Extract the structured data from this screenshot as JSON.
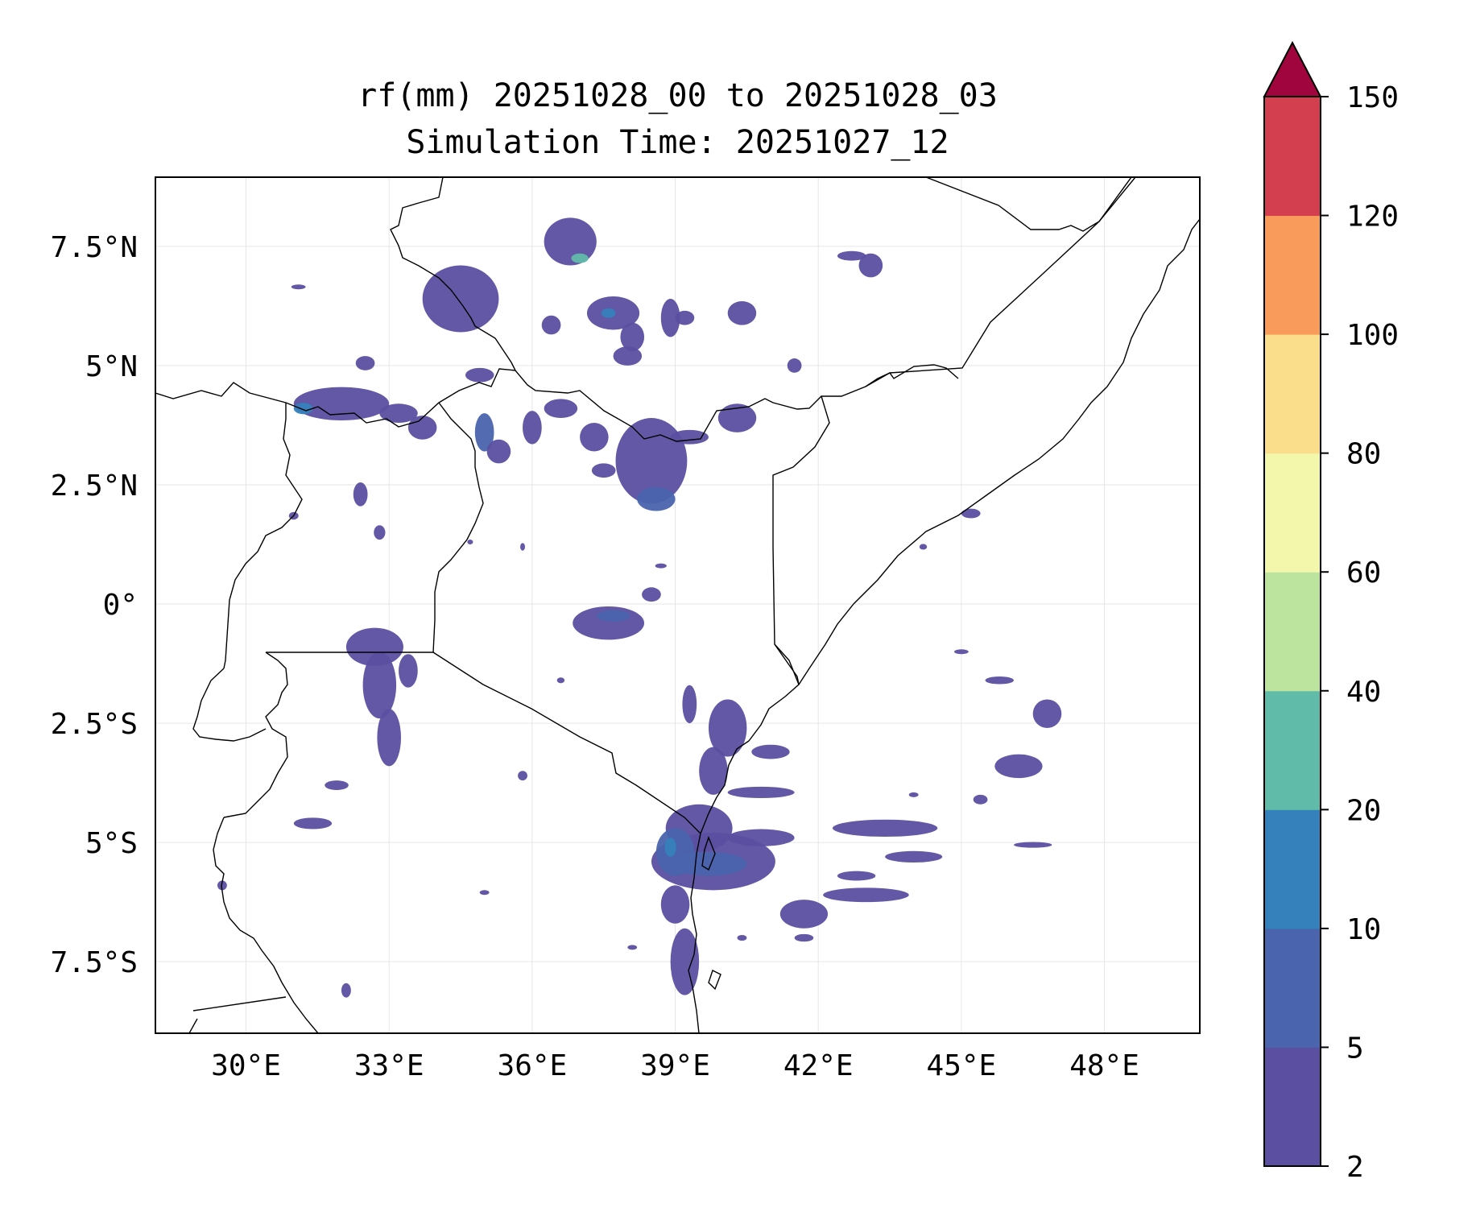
{
  "title": {
    "line1": "rf(mm) 20251028_00 to 20251028_03",
    "line2": "Simulation Time: 20251027_12"
  },
  "map": {
    "lon_range": [
      28.1,
      50.0
    ],
    "lat_range": [
      -9.0,
      8.95
    ],
    "lon_ticks": [
      {
        "value": 30,
        "label": "30°E"
      },
      {
        "value": 33,
        "label": "33°E"
      },
      {
        "value": 36,
        "label": "36°E"
      },
      {
        "value": 39,
        "label": "39°E"
      },
      {
        "value": 42,
        "label": "42°E"
      },
      {
        "value": 45,
        "label": "45°E"
      },
      {
        "value": 48,
        "label": "48°E"
      }
    ],
    "lat_ticks": [
      {
        "value": 7.5,
        "label": "7.5°N"
      },
      {
        "value": 5,
        "label": "5°N"
      },
      {
        "value": 2.5,
        "label": "2.5°N"
      },
      {
        "value": 0,
        "label": "0°"
      },
      {
        "value": -2.5,
        "label": "2.5°S"
      },
      {
        "value": -5,
        "label": "5°S"
      },
      {
        "value": -7.5,
        "label": "7.5°S"
      }
    ],
    "rain_cells": [
      {
        "lon": 34.5,
        "lat": 6.4,
        "rlon": 0.8,
        "rlat": 0.7,
        "level": 0
      },
      {
        "lon": 36.8,
        "lat": 7.6,
        "rlon": 0.55,
        "rlat": 0.5,
        "level": 0
      },
      {
        "lon": 37.0,
        "lat": 7.25,
        "rlon": 0.18,
        "rlat": 0.1,
        "level": 3
      },
      {
        "lon": 37.7,
        "lat": 6.1,
        "rlon": 0.55,
        "rlat": 0.35,
        "level": 0
      },
      {
        "lon": 37.6,
        "lat": 6.1,
        "rlon": 0.15,
        "rlat": 0.1,
        "level": 2
      },
      {
        "lon": 36.4,
        "lat": 5.85,
        "rlon": 0.2,
        "rlat": 0.2,
        "level": 0
      },
      {
        "lon": 38.0,
        "lat": 5.2,
        "rlon": 0.3,
        "rlat": 0.2,
        "level": 0
      },
      {
        "lon": 38.1,
        "lat": 5.6,
        "rlon": 0.25,
        "rlat": 0.3,
        "level": 0
      },
      {
        "lon": 38.9,
        "lat": 6.0,
        "rlon": 0.2,
        "rlat": 0.4,
        "level": 0
      },
      {
        "lon": 39.2,
        "lat": 6.0,
        "rlon": 0.2,
        "rlat": 0.15,
        "level": 0
      },
      {
        "lon": 40.4,
        "lat": 6.1,
        "rlon": 0.3,
        "rlat": 0.25,
        "level": 0
      },
      {
        "lon": 41.5,
        "lat": 5.0,
        "rlon": 0.15,
        "rlat": 0.15,
        "level": 0
      },
      {
        "lon": 43.1,
        "lat": 7.1,
        "rlon": 0.25,
        "rlat": 0.25,
        "level": 0
      },
      {
        "lon": 42.7,
        "lat": 7.3,
        "rlon": 0.3,
        "rlat": 0.1,
        "level": 0
      },
      {
        "lon": 31.1,
        "lat": 6.65,
        "rlon": 0.15,
        "rlat": 0.05,
        "level": 0
      },
      {
        "lon": 32.0,
        "lat": 4.2,
        "rlon": 1.0,
        "rlat": 0.35,
        "level": 0
      },
      {
        "lon": 31.2,
        "lat": 4.1,
        "rlon": 0.2,
        "rlat": 0.12,
        "level": 2
      },
      {
        "lon": 32.5,
        "lat": 5.05,
        "rlon": 0.2,
        "rlat": 0.15,
        "level": 0
      },
      {
        "lon": 33.2,
        "lat": 4.0,
        "rlon": 0.4,
        "rlat": 0.2,
        "level": 0
      },
      {
        "lon": 33.7,
        "lat": 3.7,
        "rlon": 0.3,
        "rlat": 0.25,
        "level": 0
      },
      {
        "lon": 34.9,
        "lat": 4.8,
        "rlon": 0.3,
        "rlat": 0.15,
        "level": 0
      },
      {
        "lon": 35.0,
        "lat": 3.6,
        "rlon": 0.2,
        "rlat": 0.4,
        "level": 1
      },
      {
        "lon": 35.3,
        "lat": 3.2,
        "rlon": 0.25,
        "rlat": 0.25,
        "level": 0
      },
      {
        "lon": 36.0,
        "lat": 3.7,
        "rlon": 0.2,
        "rlat": 0.35,
        "level": 0
      },
      {
        "lon": 36.6,
        "lat": 4.1,
        "rlon": 0.35,
        "rlat": 0.2,
        "level": 0
      },
      {
        "lon": 37.3,
        "lat": 3.5,
        "rlon": 0.3,
        "rlat": 0.3,
        "level": 0
      },
      {
        "lon": 38.5,
        "lat": 3.0,
        "rlon": 0.75,
        "rlat": 0.9,
        "level": 0
      },
      {
        "lon": 38.6,
        "lat": 2.2,
        "rlon": 0.4,
        "rlat": 0.25,
        "level": 1
      },
      {
        "lon": 39.3,
        "lat": 3.5,
        "rlon": 0.4,
        "rlat": 0.15,
        "level": 0
      },
      {
        "lon": 40.3,
        "lat": 3.9,
        "rlon": 0.4,
        "rlat": 0.3,
        "level": 0
      },
      {
        "lon": 37.5,
        "lat": 2.8,
        "rlon": 0.25,
        "rlat": 0.15,
        "level": 0
      },
      {
        "lon": 32.4,
        "lat": 2.3,
        "rlon": 0.15,
        "rlat": 0.25,
        "level": 0
      },
      {
        "lon": 32.8,
        "lat": 1.5,
        "rlon": 0.12,
        "rlat": 0.15,
        "level": 0
      },
      {
        "lon": 31.0,
        "lat": 1.85,
        "rlon": 0.1,
        "rlat": 0.08,
        "level": 0
      },
      {
        "lon": 37.6,
        "lat": -0.4,
        "rlon": 0.75,
        "rlat": 0.35,
        "level": 0
      },
      {
        "lon": 37.7,
        "lat": -0.25,
        "rlon": 0.35,
        "rlat": 0.12,
        "level": 1
      },
      {
        "lon": 38.5,
        "lat": 0.2,
        "rlon": 0.2,
        "rlat": 0.15,
        "level": 0
      },
      {
        "lon": 32.7,
        "lat": -0.9,
        "rlon": 0.6,
        "rlat": 0.4,
        "level": 0
      },
      {
        "lon": 32.8,
        "lat": -1.7,
        "rlon": 0.35,
        "rlat": 0.7,
        "level": 0
      },
      {
        "lon": 33.0,
        "lat": -2.8,
        "rlon": 0.25,
        "rlat": 0.6,
        "level": 0
      },
      {
        "lon": 33.4,
        "lat": -1.4,
        "rlon": 0.2,
        "rlat": 0.35,
        "level": 0
      },
      {
        "lon": 31.4,
        "lat": -4.6,
        "rlon": 0.4,
        "rlat": 0.12,
        "level": 0
      },
      {
        "lon": 31.9,
        "lat": -3.8,
        "rlon": 0.25,
        "rlat": 0.1,
        "level": 0
      },
      {
        "lon": 32.1,
        "lat": -8.1,
        "rlon": 0.1,
        "rlat": 0.15,
        "level": 0
      },
      {
        "lon": 29.5,
        "lat": -5.9,
        "rlon": 0.1,
        "rlat": 0.1,
        "level": 0
      },
      {
        "lon": 35.0,
        "lat": -6.05,
        "rlon": 0.1,
        "rlat": 0.05,
        "level": 0
      },
      {
        "lon": 35.8,
        "lat": -3.6,
        "rlon": 0.1,
        "rlat": 0.1,
        "level": 0
      },
      {
        "lon": 39.5,
        "lat": -4.7,
        "rlon": 0.7,
        "rlat": 0.5,
        "level": 0
      },
      {
        "lon": 39.8,
        "lat": -5.4,
        "rlon": 1.3,
        "rlat": 0.6,
        "level": 0
      },
      {
        "lon": 39.7,
        "lat": -5.45,
        "rlon": 0.8,
        "rlat": 0.25,
        "level": 1
      },
      {
        "lon": 39.0,
        "lat": -5.2,
        "rlon": 0.4,
        "rlat": 0.5,
        "level": 1
      },
      {
        "lon": 38.9,
        "lat": -5.1,
        "rlon": 0.12,
        "rlat": 0.2,
        "level": 2
      },
      {
        "lon": 40.8,
        "lat": -4.9,
        "rlon": 0.7,
        "rlat": 0.18,
        "level": 0
      },
      {
        "lon": 40.8,
        "lat": -3.95,
        "rlon": 0.7,
        "rlat": 0.12,
        "level": 0
      },
      {
        "lon": 41.0,
        "lat": -3.1,
        "rlon": 0.4,
        "rlat": 0.15,
        "level": 0
      },
      {
        "lon": 40.1,
        "lat": -2.6,
        "rlon": 0.4,
        "rlat": 0.6,
        "level": 0
      },
      {
        "lon": 39.8,
        "lat": -3.5,
        "rlon": 0.3,
        "rlat": 0.5,
        "level": 0
      },
      {
        "lon": 39.3,
        "lat": -2.1,
        "rlon": 0.15,
        "rlat": 0.4,
        "level": 0
      },
      {
        "lon": 39.2,
        "lat": -7.5,
        "rlon": 0.3,
        "rlat": 0.7,
        "level": 0
      },
      {
        "lon": 39.0,
        "lat": -6.3,
        "rlon": 0.3,
        "rlat": 0.4,
        "level": 0
      },
      {
        "lon": 43.0,
        "lat": -6.1,
        "rlon": 0.9,
        "rlat": 0.15,
        "level": 0
      },
      {
        "lon": 41.7,
        "lat": -6.5,
        "rlon": 0.5,
        "rlat": 0.3,
        "level": 0
      },
      {
        "lon": 43.4,
        "lat": -4.7,
        "rlon": 1.1,
        "rlat": 0.18,
        "level": 0
      },
      {
        "lon": 44.0,
        "lat": -5.3,
        "rlon": 0.6,
        "rlat": 0.12,
        "level": 0
      },
      {
        "lon": 42.8,
        "lat": -5.7,
        "rlon": 0.4,
        "rlat": 0.1,
        "level": 0
      },
      {
        "lon": 46.8,
        "lat": -2.3,
        "rlon": 0.3,
        "rlat": 0.3,
        "level": 0
      },
      {
        "lon": 46.2,
        "lat": -3.4,
        "rlon": 0.5,
        "rlat": 0.25,
        "level": 0
      },
      {
        "lon": 45.8,
        "lat": -1.6,
        "rlon": 0.3,
        "rlat": 0.08,
        "level": 0
      },
      {
        "lon": 46.5,
        "lat": -5.05,
        "rlon": 0.4,
        "rlat": 0.06,
        "level": 0
      },
      {
        "lon": 45.4,
        "lat": -4.1,
        "rlon": 0.15,
        "rlat": 0.1,
        "level": 0
      },
      {
        "lon": 45.0,
        "lat": -1.0,
        "rlon": 0.15,
        "rlat": 0.05,
        "level": 0
      },
      {
        "lon": 44.0,
        "lat": -4.0,
        "rlon": 0.1,
        "rlat": 0.05,
        "level": 0
      },
      {
        "lon": 35.8,
        "lat": 1.2,
        "rlon": 0.05,
        "rlat": 0.08,
        "level": 0
      },
      {
        "lon": 34.7,
        "lat": 1.3,
        "rlon": 0.06,
        "rlat": 0.05,
        "level": 0
      },
      {
        "lon": 36.6,
        "lat": -1.6,
        "rlon": 0.08,
        "rlat": 0.06,
        "level": 0
      },
      {
        "lon": 45.2,
        "lat": 1.9,
        "rlon": 0.2,
        "rlat": 0.1,
        "level": 0
      },
      {
        "lon": 44.2,
        "lat": 1.2,
        "rlon": 0.08,
        "rlat": 0.06,
        "level": 0
      },
      {
        "lon": 38.7,
        "lat": 0.8,
        "rlon": 0.12,
        "rlat": 0.05,
        "level": 0
      },
      {
        "lon": 38.1,
        "lat": -7.2,
        "rlon": 0.1,
        "rlat": 0.05,
        "level": 0
      },
      {
        "lon": 41.7,
        "lat": -7.0,
        "rlon": 0.2,
        "rlat": 0.08,
        "level": 0
      },
      {
        "lon": 40.4,
        "lat": -7.0,
        "rlon": 0.1,
        "rlat": 0.06,
        "level": 0
      }
    ]
  },
  "colorbar": {
    "levels": [
      {
        "label": "2",
        "color": "#5a4fa0"
      },
      {
        "label": "5",
        "color": "#4a64ad"
      },
      {
        "label": "10",
        "color": "#3581bb"
      },
      {
        "label": "20",
        "color": "#61bba9"
      },
      {
        "label": "40",
        "color": "#bde49f"
      },
      {
        "label": "60",
        "color": "#f2f7ac"
      },
      {
        "label": "80",
        "color": "#fbde8c"
      },
      {
        "label": "100",
        "color": "#f99b5a"
      },
      {
        "label": "120",
        "color": "#d43f50"
      },
      {
        "label": "150",
        "color": "#a0053d"
      }
    ]
  }
}
